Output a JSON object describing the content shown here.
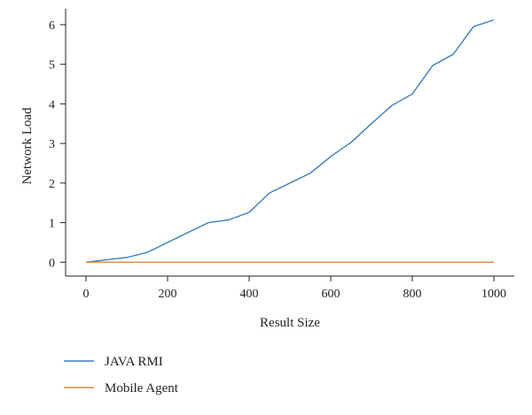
{
  "chart_data": {
    "type": "line",
    "title": "",
    "xlabel": "Result Size",
    "ylabel": "Network Load",
    "xlim": [
      -50,
      1050
    ],
    "ylim": [
      -0.35,
      6.4
    ],
    "xticks": [
      0,
      200,
      400,
      600,
      800,
      1000
    ],
    "yticks": [
      0,
      1,
      2,
      3,
      4,
      5,
      6
    ],
    "grid": false,
    "legend_position": "bottom-left",
    "series": [
      {
        "name": "JAVA RMI",
        "color": "#3a7ebf",
        "x": [
          0,
          100,
          150,
          200,
          250,
          300,
          350,
          400,
          450,
          500,
          550,
          600,
          650,
          700,
          750,
          800,
          850,
          900,
          950,
          1000
        ],
        "y": [
          0,
          0.12,
          0.25,
          0.5,
          0.75,
          1.0,
          1.07,
          1.26,
          1.75,
          2.0,
          2.25,
          2.67,
          3.03,
          3.5,
          3.96,
          4.25,
          4.97,
          5.25,
          5.95,
          6.12
        ]
      },
      {
        "name": "Mobile Agent",
        "color": "#e08a3c",
        "x": [
          0,
          1000
        ],
        "y": [
          0,
          0
        ]
      }
    ]
  }
}
